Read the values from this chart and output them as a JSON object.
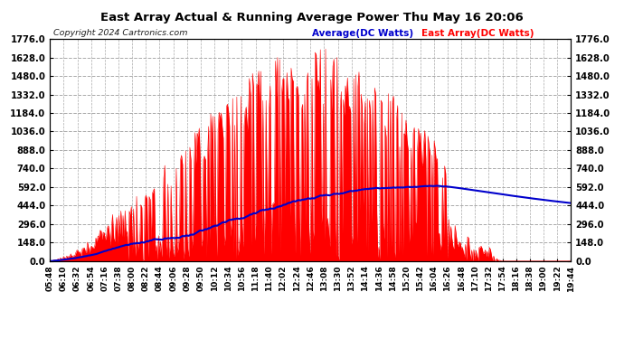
{
  "title": "East Array Actual & Running Average Power Thu May 16 20:06",
  "copyright": "Copyright 2024 Cartronics.com",
  "legend_average": "Average(DC Watts)",
  "legend_east": "East Array(DC Watts)",
  "ylim": [
    0,
    1776.0
  ],
  "yticks": [
    0.0,
    148.0,
    296.0,
    444.0,
    592.0,
    740.0,
    888.0,
    1036.0,
    1184.0,
    1332.0,
    1480.0,
    1628.0,
    1776.0
  ],
  "bg_color": "#ffffff",
  "plot_bg_color": "#ffffff",
  "grid_color": "#aaaaaa",
  "fill_color": "#ff0000",
  "line_color": "#0000cc",
  "title_color": "#000000",
  "copyright_color": "#000000",
  "avg_legend_color": "#0000cc",
  "east_legend_color": "#ff0000",
  "time_labels": [
    "05:48",
    "06:10",
    "06:32",
    "06:54",
    "07:16",
    "07:38",
    "08:00",
    "08:22",
    "08:44",
    "09:06",
    "09:28",
    "09:50",
    "10:12",
    "10:34",
    "10:56",
    "11:18",
    "11:40",
    "12:02",
    "12:24",
    "12:46",
    "13:08",
    "13:30",
    "13:52",
    "14:14",
    "14:36",
    "14:58",
    "15:20",
    "15:42",
    "16:04",
    "16:26",
    "16:48",
    "17:10",
    "17:32",
    "17:54",
    "18:16",
    "18:38",
    "19:00",
    "19:22",
    "19:44"
  ],
  "n_points": 500
}
